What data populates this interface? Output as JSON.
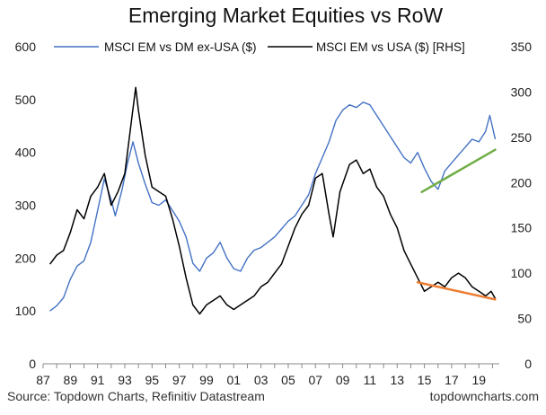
{
  "chart_data": {
    "type": "line",
    "title": "Emerging Market Equities vs RoW",
    "x_tick_labels": [
      "87",
      "89",
      "91",
      "93",
      "95",
      "97",
      "99",
      "01",
      "03",
      "05",
      "07",
      "09",
      "11",
      "13",
      "15",
      "17",
      "19"
    ],
    "x_ticks": [
      1987,
      1989,
      1991,
      1993,
      1995,
      1997,
      1999,
      2001,
      2003,
      2005,
      2007,
      2009,
      2011,
      2013,
      2015,
      2017,
      2019
    ],
    "xlim": [
      1987,
      2020.5
    ],
    "y_left": {
      "ticks": [
        0,
        100,
        200,
        300,
        400,
        500,
        600
      ],
      "ylim": [
        0,
        600
      ]
    },
    "y_right": {
      "ticks": [
        0,
        50,
        100,
        150,
        200,
        250,
        300,
        350
      ],
      "ylim": [
        0,
        350
      ]
    },
    "series": [
      {
        "name": "MSCI EM vs DM ex-USA ($)",
        "axis": "left",
        "color": "#4472C4",
        "points": [
          [
            1987.5,
            100
          ],
          [
            1988.0,
            110
          ],
          [
            1988.5,
            125
          ],
          [
            1989.0,
            160
          ],
          [
            1989.5,
            185
          ],
          [
            1990.0,
            195
          ],
          [
            1990.5,
            230
          ],
          [
            1991.0,
            290
          ],
          [
            1991.5,
            350
          ],
          [
            1992.0,
            310
          ],
          [
            1992.3,
            280
          ],
          [
            1992.8,
            330
          ],
          [
            1993.2,
            380
          ],
          [
            1993.6,
            420
          ],
          [
            1994.0,
            380
          ],
          [
            1994.5,
            340
          ],
          [
            1995.0,
            305
          ],
          [
            1995.5,
            300
          ],
          [
            1996.0,
            310
          ],
          [
            1996.5,
            290
          ],
          [
            1997.0,
            270
          ],
          [
            1997.5,
            240
          ],
          [
            1998.0,
            190
          ],
          [
            1998.5,
            175
          ],
          [
            1999.0,
            200
          ],
          [
            1999.5,
            210
          ],
          [
            2000.0,
            230
          ],
          [
            2000.5,
            200
          ],
          [
            2001.0,
            180
          ],
          [
            2001.5,
            175
          ],
          [
            2002.0,
            200
          ],
          [
            2002.5,
            215
          ],
          [
            2003.0,
            220
          ],
          [
            2003.5,
            230
          ],
          [
            2004.0,
            240
          ],
          [
            2004.5,
            255
          ],
          [
            2005.0,
            270
          ],
          [
            2005.5,
            280
          ],
          [
            2006.0,
            300
          ],
          [
            2006.5,
            320
          ],
          [
            2007.0,
            360
          ],
          [
            2007.5,
            390
          ],
          [
            2008.0,
            420
          ],
          [
            2008.5,
            460
          ],
          [
            2009.0,
            480
          ],
          [
            2009.5,
            490
          ],
          [
            2010.0,
            485
          ],
          [
            2010.5,
            495
          ],
          [
            2011.0,
            490
          ],
          [
            2011.5,
            470
          ],
          [
            2012.0,
            450
          ],
          [
            2012.5,
            430
          ],
          [
            2013.0,
            410
          ],
          [
            2013.5,
            390
          ],
          [
            2014.0,
            380
          ],
          [
            2014.5,
            400
          ],
          [
            2015.0,
            370
          ],
          [
            2015.5,
            345
          ],
          [
            2016.0,
            330
          ],
          [
            2016.5,
            365
          ],
          [
            2017.0,
            380
          ],
          [
            2017.5,
            395
          ],
          [
            2018.0,
            410
          ],
          [
            2018.5,
            425
          ],
          [
            2019.0,
            420
          ],
          [
            2019.5,
            440
          ],
          [
            2019.8,
            470
          ],
          [
            2020.2,
            425
          ]
        ]
      },
      {
        "name": "MSCI EM vs USA ($) [RHS]",
        "axis": "right",
        "color": "#000000",
        "points": [
          [
            1987.5,
            110
          ],
          [
            1988.0,
            120
          ],
          [
            1988.5,
            125
          ],
          [
            1989.0,
            145
          ],
          [
            1989.5,
            170
          ],
          [
            1990.0,
            160
          ],
          [
            1990.5,
            185
          ],
          [
            1991.0,
            195
          ],
          [
            1991.5,
            210
          ],
          [
            1992.0,
            175
          ],
          [
            1992.5,
            190
          ],
          [
            1993.0,
            210
          ],
          [
            1993.5,
            270
          ],
          [
            1993.8,
            305
          ],
          [
            1994.0,
            280
          ],
          [
            1994.5,
            230
          ],
          [
            1995.0,
            195
          ],
          [
            1995.5,
            190
          ],
          [
            1996.0,
            185
          ],
          [
            1996.5,
            160
          ],
          [
            1997.0,
            130
          ],
          [
            1997.5,
            95
          ],
          [
            1998.0,
            65
          ],
          [
            1998.5,
            55
          ],
          [
            1999.0,
            65
          ],
          [
            1999.5,
            70
          ],
          [
            2000.0,
            75
          ],
          [
            2000.5,
            65
          ],
          [
            2001.0,
            60
          ],
          [
            2001.5,
            65
          ],
          [
            2002.0,
            70
          ],
          [
            2002.5,
            75
          ],
          [
            2003.0,
            85
          ],
          [
            2003.5,
            90
          ],
          [
            2004.0,
            100
          ],
          [
            2004.5,
            110
          ],
          [
            2005.0,
            130
          ],
          [
            2005.5,
            150
          ],
          [
            2006.0,
            165
          ],
          [
            2006.5,
            175
          ],
          [
            2007.0,
            205
          ],
          [
            2007.5,
            210
          ],
          [
            2008.0,
            165
          ],
          [
            2008.3,
            140
          ],
          [
            2008.8,
            190
          ],
          [
            2009.5,
            220
          ],
          [
            2010.0,
            225
          ],
          [
            2010.5,
            210
          ],
          [
            2011.0,
            215
          ],
          [
            2011.5,
            195
          ],
          [
            2012.0,
            185
          ],
          [
            2012.5,
            165
          ],
          [
            2013.0,
            150
          ],
          [
            2013.5,
            125
          ],
          [
            2014.0,
            110
          ],
          [
            2014.5,
            95
          ],
          [
            2015.0,
            80
          ],
          [
            2015.5,
            85
          ],
          [
            2016.0,
            90
          ],
          [
            2016.5,
            85
          ],
          [
            2017.0,
            95
          ],
          [
            2017.5,
            100
          ],
          [
            2018.0,
            95
          ],
          [
            2018.5,
            85
          ],
          [
            2019.0,
            80
          ],
          [
            2019.5,
            75
          ],
          [
            2019.9,
            80
          ],
          [
            2020.2,
            72
          ]
        ]
      }
    ],
    "trend_lines": [
      {
        "axis": "left",
        "color": "#70AD47",
        "from": [
          2014.8,
          325
        ],
        "to": [
          2020.2,
          405
        ]
      },
      {
        "axis": "right",
        "color": "#ED7D31",
        "from": [
          2014.5,
          90
        ],
        "to": [
          2020.2,
          71
        ]
      }
    ],
    "source": "Source: Topdown Charts, Refinitiv Datastream",
    "watermark": "topdowncharts.com"
  }
}
